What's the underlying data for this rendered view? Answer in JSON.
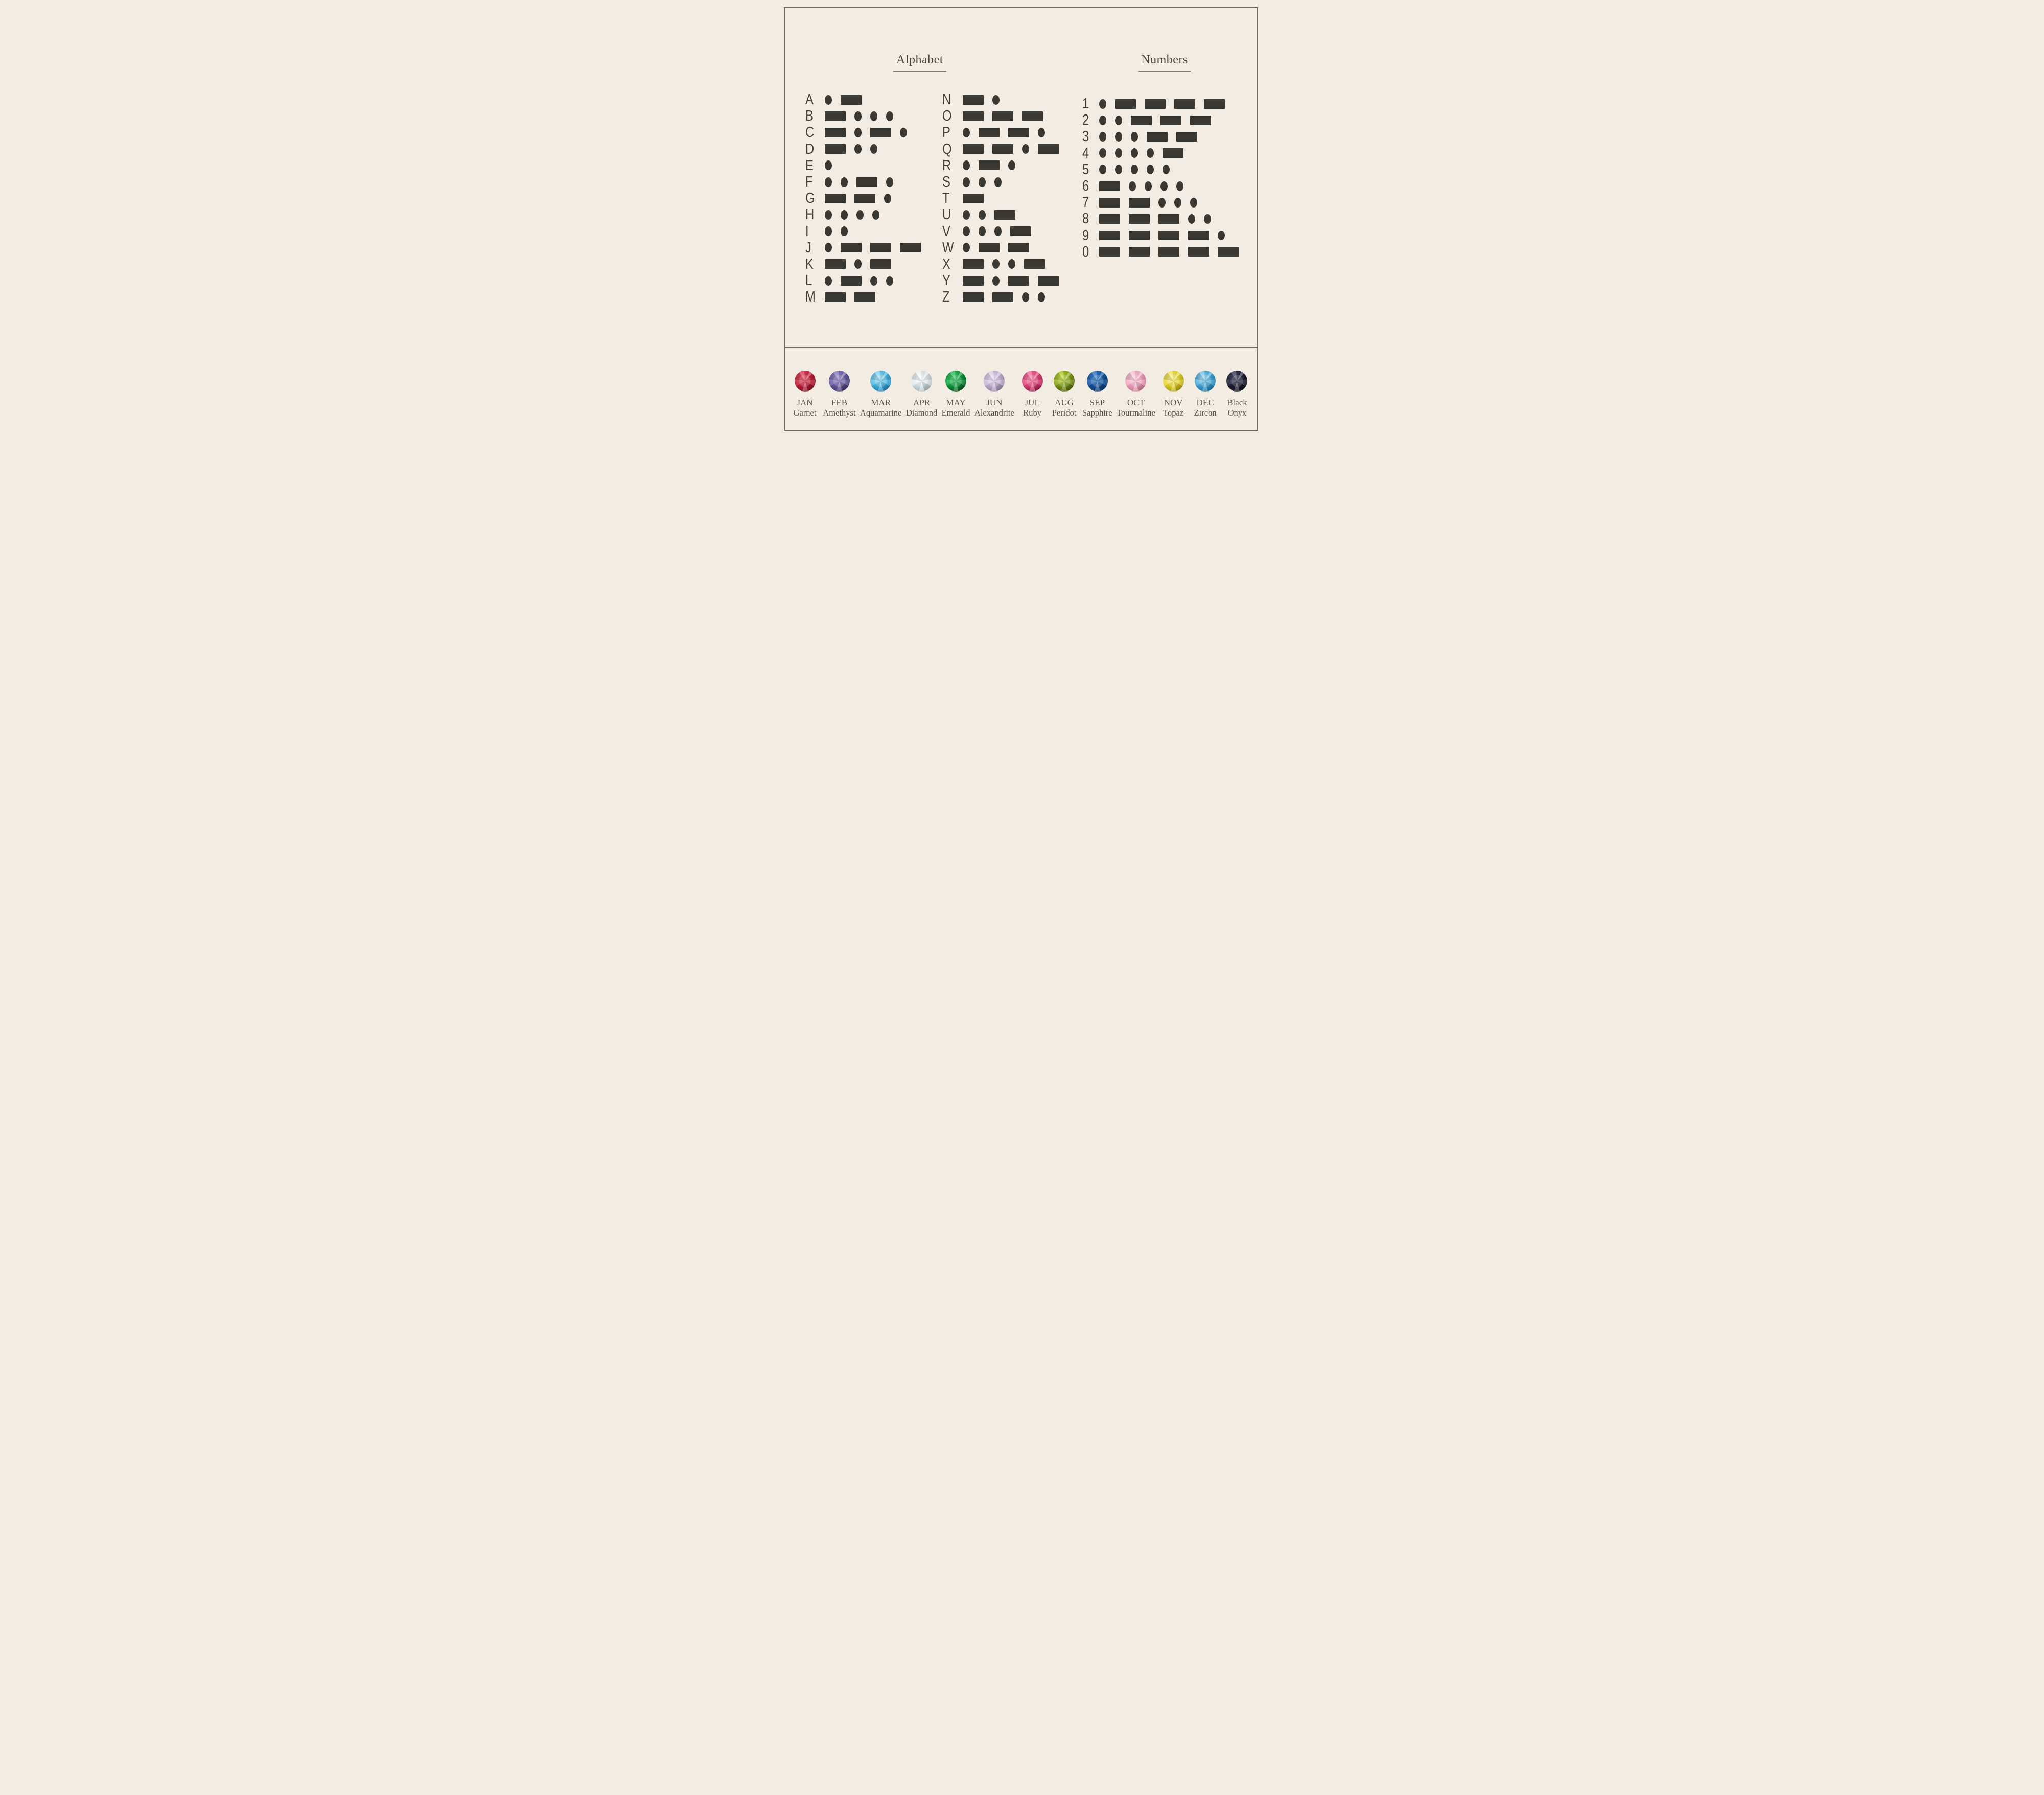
{
  "titles": {
    "alphabet": "Alphabet",
    "numbers": "Numbers"
  },
  "palette": {
    "background": "#f3ece2",
    "border": "#6f6a61",
    "symbol": "#3a3833",
    "letter": "#43403a",
    "title": "#4a453c",
    "label": "#57534b"
  },
  "morse": {
    "letters": [
      {
        "char": "A",
        "code": ".-"
      },
      {
        "char": "B",
        "code": "-..."
      },
      {
        "char": "C",
        "code": "-.-."
      },
      {
        "char": "D",
        "code": "-.."
      },
      {
        "char": "E",
        "code": "."
      },
      {
        "char": "F",
        "code": "..-."
      },
      {
        "char": "G",
        "code": "--."
      },
      {
        "char": "H",
        "code": "...."
      },
      {
        "char": "I",
        "code": ".."
      },
      {
        "char": "J",
        "code": ".---"
      },
      {
        "char": "K",
        "code": "-.-"
      },
      {
        "char": "L",
        "code": ".-.."
      },
      {
        "char": "M",
        "code": "--"
      },
      {
        "char": "N",
        "code": "-."
      },
      {
        "char": "O",
        "code": "---"
      },
      {
        "char": "P",
        "code": ".--."
      },
      {
        "char": "Q",
        "code": "--.-"
      },
      {
        "char": "R",
        "code": ".-."
      },
      {
        "char": "S",
        "code": "..."
      },
      {
        "char": "T",
        "code": "-"
      },
      {
        "char": "U",
        "code": "..-"
      },
      {
        "char": "V",
        "code": "...-"
      },
      {
        "char": "W",
        "code": ".--"
      },
      {
        "char": "X",
        "code": "-..-"
      },
      {
        "char": "Y",
        "code": "-.--"
      },
      {
        "char": "Z",
        "code": "--.."
      }
    ],
    "numbers": [
      {
        "char": "1",
        "code": ".----"
      },
      {
        "char": "2",
        "code": "..---"
      },
      {
        "char": "3",
        "code": "...--"
      },
      {
        "char": "4",
        "code": "....-"
      },
      {
        "char": "5",
        "code": "....."
      },
      {
        "char": "6",
        "code": "-...."
      },
      {
        "char": "7",
        "code": "--..."
      },
      {
        "char": "8",
        "code": "---.."
      },
      {
        "char": "9",
        "code": "----."
      },
      {
        "char": "0",
        "code": "-----"
      }
    ]
  },
  "gems": [
    {
      "line1": "JAN",
      "line2": "Garnet",
      "colors": {
        "light": "#e5506a",
        "mid": "#bf1f38",
        "dark": "#70101f"
      }
    },
    {
      "line1": "FEB",
      "line2": "Amethyst",
      "colors": {
        "light": "#9b8ccc",
        "mid": "#665a9e",
        "dark": "#352b58"
      }
    },
    {
      "line1": "MAR",
      "line2": "Aquamarine",
      "colors": {
        "light": "#a8e4f5",
        "mid": "#45b5e3",
        "dark": "#1576a8"
      }
    },
    {
      "line1": "APR",
      "line2": "Diamond",
      "colors": {
        "light": "#fbfdfd",
        "mid": "#dce6e9",
        "dark": "#9db0b8"
      }
    },
    {
      "line1": "MAY",
      "line2": "Emerald",
      "colors": {
        "light": "#41cf6e",
        "mid": "#0e9a3c",
        "dark": "#043d18"
      }
    },
    {
      "line1": "JUN",
      "line2": "Alexandrite",
      "colors": {
        "light": "#ecdff2",
        "mid": "#c7b2d6",
        "dark": "#8d7aa0"
      }
    },
    {
      "line1": "JUL",
      "line2": "Ruby",
      "colors": {
        "light": "#fa82ab",
        "mid": "#e04378",
        "dark": "#8e1243"
      }
    },
    {
      "line1": "AUG",
      "line2": "Peridot",
      "colors": {
        "light": "#cbe23f",
        "mid": "#7e9b16",
        "dark": "#3f4d08"
      }
    },
    {
      "line1": "SEP",
      "line2": "Sapphire",
      "colors": {
        "light": "#3e86d2",
        "mid": "#14539e",
        "dark": "#092a5c"
      }
    },
    {
      "line1": "OCT",
      "line2": "Tourmaline",
      "colors": {
        "light": "#fbd3e0",
        "mid": "#f2a3bf",
        "dark": "#c26d8c"
      }
    },
    {
      "line1": "NOV",
      "line2": "Topaz",
      "colors": {
        "light": "#f8f08a",
        "mid": "#e6d428",
        "dark": "#9e8d0d"
      }
    },
    {
      "line1": "DEC",
      "line2": "Zircon",
      "colors": {
        "light": "#9ad8f2",
        "mid": "#43a4d6",
        "dark": "#17699c"
      }
    },
    {
      "line1": "Black",
      "line2": "Onyx",
      "colors": {
        "light": "#4c4c68",
        "mid": "#1e1e33",
        "dark": "#080810"
      }
    }
  ]
}
